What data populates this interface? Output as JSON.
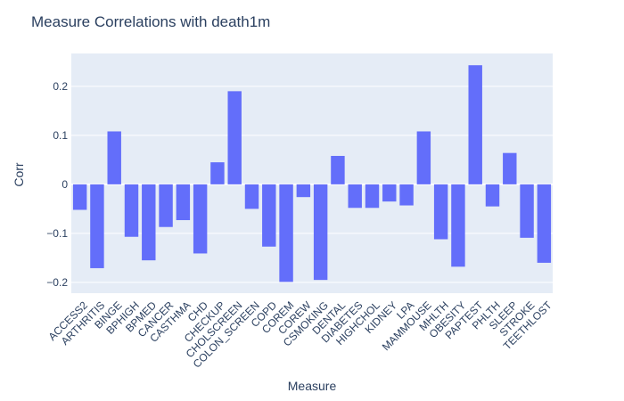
{
  "chart_data": {
    "type": "bar",
    "title": "Measure Correlations with death1m",
    "xlabel": "Measure",
    "ylabel": "Corr",
    "ylim": [
      -0.222,
      0.267
    ],
    "yticks": [
      -0.2,
      -0.1,
      0,
      0.1,
      0.2
    ],
    "ytick_labels": [
      "−0.2",
      "−0.1",
      "0",
      "0.1",
      "0.2"
    ],
    "grid": true,
    "bar_color": "#636efa",
    "plot_bg": "#e5ecf6",
    "categories": [
      "ACCESS2",
      "ARTHRITIS",
      "BINGE",
      "BPHIGH",
      "BPMED",
      "CANCER",
      "CASTHMA",
      "CHD",
      "CHECKUP",
      "CHOLSCREEN",
      "COLON_SCREEN",
      "COPD",
      "COREM",
      "COREW",
      "CSMOKING",
      "DENTAL",
      "DIABETES",
      "HIGHCHOL",
      "KIDNEY",
      "LPA",
      "MAMMOUSE",
      "MHLTH",
      "OBESITY",
      "PAPTEST",
      "PHLTH",
      "SLEEP",
      "STROKE",
      "TEETHLOST"
    ],
    "values": [
      -0.052,
      -0.171,
      0.108,
      -0.107,
      -0.155,
      -0.087,
      -0.073,
      -0.141,
      0.045,
      0.19,
      -0.05,
      -0.127,
      -0.199,
      -0.026,
      -0.195,
      0.058,
      -0.048,
      -0.048,
      -0.035,
      -0.043,
      0.108,
      -0.112,
      -0.168,
      0.243,
      -0.045,
      0.064,
      -0.109,
      -0.16
    ]
  }
}
